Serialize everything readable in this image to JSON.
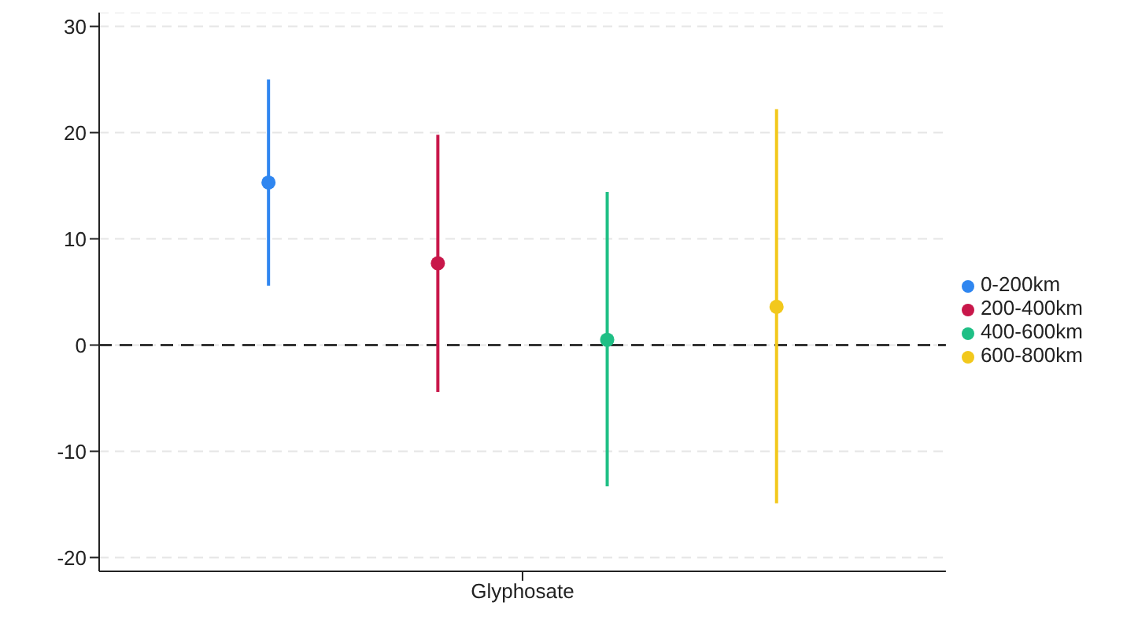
{
  "chart_data": {
    "type": "scatter",
    "categories": [
      "Glyphosate"
    ],
    "series": [
      {
        "name": "0-200km",
        "color": "#2f86f0",
        "values": [
          15.3
        ],
        "errors": [
          [
            5.6,
            25.0
          ]
        ]
      },
      {
        "name": "200-400km",
        "color": "#c8174a",
        "values": [
          7.7
        ],
        "errors": [
          [
            -4.4,
            19.8
          ]
        ]
      },
      {
        "name": "400-600km",
        "color": "#1fbf85",
        "values": [
          0.5
        ],
        "errors": [
          [
            -13.3,
            14.4
          ]
        ]
      },
      {
        "name": "600-800km",
        "color": "#f2c81c",
        "values": [
          3.6
        ],
        "errors": [
          [
            -14.9,
            22.2
          ]
        ]
      }
    ],
    "ylim": [
      -21.3,
      31.3
    ],
    "yticks": [
      -20,
      -10,
      0,
      10,
      20,
      30
    ],
    "grid": "y",
    "legend": "right",
    "marker": "circle",
    "ref_lines": [
      {
        "axis": "y",
        "value": 0,
        "line_style": "dashed",
        "color": "#333333"
      }
    ]
  }
}
